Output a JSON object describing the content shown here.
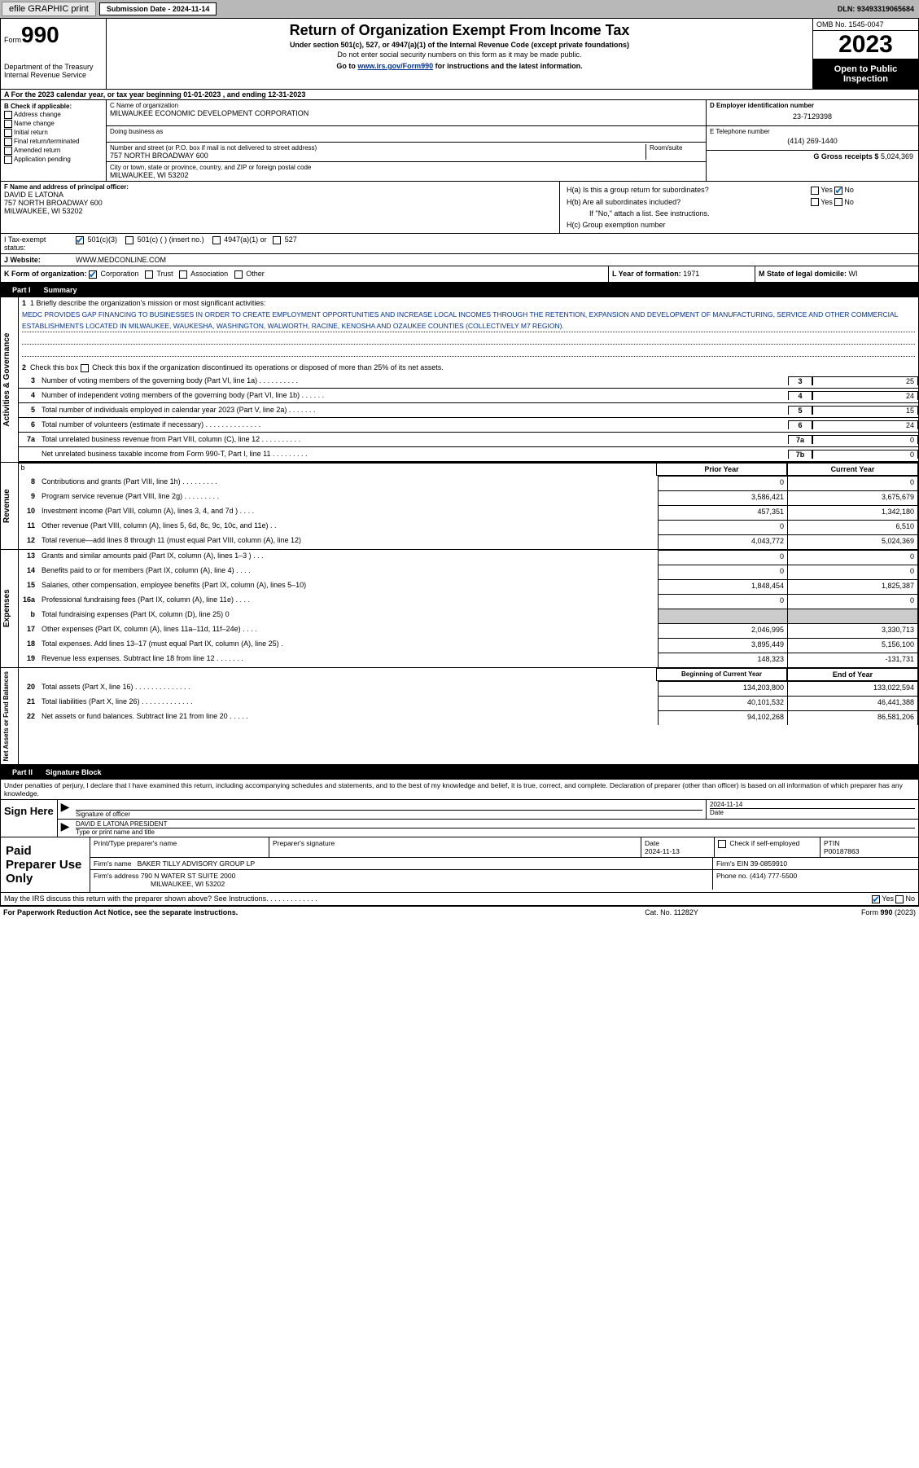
{
  "topbar": {
    "efile": "efile GRAPHIC print",
    "submission_label": "Submission Date - 2024-11-14",
    "dln": "DLN: 93493319065684"
  },
  "header": {
    "form_word": "Form",
    "form_num": "990",
    "dept": "Department of the Treasury",
    "irs": "Internal Revenue Service",
    "title": "Return of Organization Exempt From Income Tax",
    "sub1": "Under section 501(c), 527, or 4947(a)(1) of the Internal Revenue Code (except private foundations)",
    "sub2": "Do not enter social security numbers on this form as it may be made public.",
    "sub3_a": "Go to ",
    "sub3_link": "www.irs.gov/Form990",
    "sub3_b": " for instructions and the latest information.",
    "omb": "OMB No. 1545-0047",
    "year": "2023",
    "open": "Open to Public Inspection"
  },
  "line_a": "A For the 2023 calendar year, or tax year beginning 01-01-2023   , and ending 12-31-2023",
  "box_b": {
    "title": "B Check if applicable:",
    "opts": [
      "Address change",
      "Name change",
      "Initial return",
      "Final return/terminated",
      "Amended return",
      "Application pending"
    ]
  },
  "box_c": {
    "label": "C Name of organization",
    "name": "MILWAUKEE ECONOMIC DEVELOPMENT CORPORATION",
    "dba_label": "Doing business as",
    "street_label": "Number and street (or P.O. box if mail is not delivered to street address)",
    "room_label": "Room/suite",
    "street": "757 NORTH BROADWAY 600",
    "city_label": "City or town, state or province, country, and ZIP or foreign postal code",
    "city": "MILWAUKEE, WI  53202"
  },
  "box_d": {
    "label": "D Employer identification number",
    "val": "23-7129398"
  },
  "box_e": {
    "label": "E Telephone number",
    "val": "(414) 269-1440"
  },
  "box_g": {
    "label": "G Gross receipts $",
    "val": "5,024,369"
  },
  "box_f": {
    "label": "F Name and address of principal officer:",
    "name": "DAVID E LATONA",
    "addr1": "757 NORTH BROADWAY 600",
    "addr2": "MILWAUKEE, WI  53202"
  },
  "box_h": {
    "ha": "H(a)  Is this a group return for subordinates?",
    "hb": "H(b)  Are all subordinates included?",
    "hb_note": "If \"No,\" attach a list. See instructions.",
    "hc": "H(c)  Group exemption number ",
    "yes": "Yes",
    "no": "No"
  },
  "row_i": {
    "label": "I   Tax-exempt status:",
    "o1": "501(c)(3)",
    "o2": "501(c) (  ) (insert no.)",
    "o3": "4947(a)(1) or",
    "o4": "527"
  },
  "row_j": {
    "label": "J   Website:",
    "val": "WWW.MEDCONLINE.COM"
  },
  "row_k": {
    "k1": "K Form of organization:   Corporation    Trust    Association    Other",
    "k1_opts": [
      "Corporation",
      "Trust",
      "Association",
      "Other"
    ],
    "k1_label": "K Form of organization:",
    "k2_label": "L Year of formation:",
    "k2_val": "1971",
    "k3_label": "M State of legal domicile:",
    "k3_val": "WI"
  },
  "part1": {
    "num": "Part I",
    "title": "Summary"
  },
  "s1": {
    "side": "Activities & Governance",
    "l1_label": "1   Briefly describe the organization's mission or most significant activities:",
    "mission": "MEDC PROVIDES GAP FINANCING TO BUSINESSES IN ORDER TO CREATE EMPLOYMENT OPPORTUNITIES AND INCREASE LOCAL INCOMES THROUGH THE RETENTION, EXPANSION AND DEVELOPMENT OF MANUFACTURING, SERVICE AND OTHER COMMERCIAL ESTABLISHMENTS LOCATED IN MILWAUKEE, WAUKESHA, WASHINGTON, WALWORTH, RACINE, KENOSHA AND OZAUKEE COUNTIES (COLLECTIVELY M7 REGION).",
    "l2": "Check this box    if the organization discontinued its operations or disposed of more than 25% of its net assets.",
    "rows": [
      {
        "n": "3",
        "t": "Number of voting members of the governing body (Part VI, line 1a)   .    .    .    .    .    .    .    .    .    .",
        "id": "3",
        "v": "25"
      },
      {
        "n": "4",
        "t": "Number of independent voting members of the governing body (Part VI, line 1b)   .    .    .    .    .    .",
        "id": "4",
        "v": "24"
      },
      {
        "n": "5",
        "t": "Total number of individuals employed in calendar year 2023 (Part V, line 2a)   .    .    .    .    .    .    .",
        "id": "5",
        "v": "15"
      },
      {
        "n": "6",
        "t": "Total number of volunteers (estimate if necessary)   .    .    .    .    .    .    .    .    .    .    .    .    .    .",
        "id": "6",
        "v": "24"
      },
      {
        "n": "7a",
        "t": "Total unrelated business revenue from Part VIII, column (C), line 12   .    .    .    .    .    .    .    .    .    .",
        "id": "7a",
        "v": "0"
      },
      {
        "n": "",
        "t": "Net unrelated business taxable income from Form 990-T, Part I, line 11   .    .    .    .    .    .    .    .    .",
        "id": "7b",
        "v": "0"
      }
    ]
  },
  "s2": {
    "side": "Revenue",
    "h1": "Prior Year",
    "h2": "Current Year",
    "rows": [
      {
        "n": "8",
        "t": "Contributions and grants (Part VIII, line 1h)   .    .    .    .    .    .    .    .    .",
        "v1": "0",
        "v2": "0"
      },
      {
        "n": "9",
        "t": "Program service revenue (Part VIII, line 2g)   .    .    .    .    .    .    .    .    .",
        "v1": "3,586,421",
        "v2": "3,675,679"
      },
      {
        "n": "10",
        "t": "Investment income (Part VIII, column (A), lines 3, 4, and 7d )   .    .    .    .",
        "v1": "457,351",
        "v2": "1,342,180"
      },
      {
        "n": "11",
        "t": "Other revenue (Part VIII, column (A), lines 5, 6d, 8c, 9c, 10c, and 11e)   .    .",
        "v1": "0",
        "v2": "6,510"
      },
      {
        "n": "12",
        "t": "Total revenue—add lines 8 through 11 (must equal Part VIII, column (A), line 12)",
        "v1": "4,043,772",
        "v2": "5,024,369"
      }
    ]
  },
  "s3": {
    "side": "Expenses",
    "rows": [
      {
        "n": "13",
        "t": "Grants and similar amounts paid (Part IX, column (A), lines 1–3 )   .    .    .",
        "v1": "0",
        "v2": "0"
      },
      {
        "n": "14",
        "t": "Benefits paid to or for members (Part IX, column (A), line 4)   .    .    .    .",
        "v1": "0",
        "v2": "0"
      },
      {
        "n": "15",
        "t": "Salaries, other compensation, employee benefits (Part IX, column (A), lines 5–10)",
        "v1": "1,848,454",
        "v2": "1,825,387"
      },
      {
        "n": "16a",
        "t": "Professional fundraising fees (Part IX, column (A), line 11e)   .    .    .    .",
        "v1": "0",
        "v2": "0"
      },
      {
        "n": "b",
        "t": "Total fundraising expenses (Part IX, column (D), line 25) 0",
        "v1": "",
        "v2": "",
        "gray": true
      },
      {
        "n": "17",
        "t": "Other expenses (Part IX, column (A), lines 11a–11d, 11f–24e)   .    .    .    .",
        "v1": "2,046,995",
        "v2": "3,330,713"
      },
      {
        "n": "18",
        "t": "Total expenses. Add lines 13–17 (must equal Part IX, column (A), line 25)   .",
        "v1": "3,895,449",
        "v2": "5,156,100"
      },
      {
        "n": "19",
        "t": "Revenue less expenses. Subtract line 18 from line 12   .    .    .    .    .    .    .",
        "v1": "148,323",
        "v2": "-131,731"
      }
    ]
  },
  "s4": {
    "side": "Net Assets or Fund Balances",
    "h1": "Beginning of Current Year",
    "h2": "End of Year",
    "rows": [
      {
        "n": "20",
        "t": "Total assets (Part X, line 16)   .    .    .    .    .    .    .    .    .    .    .    .    .    .",
        "v1": "134,203,800",
        "v2": "133,022,594"
      },
      {
        "n": "21",
        "t": "Total liabilities (Part X, line 26)   .    .    .    .    .    .    .    .    .    .    .    .    .",
        "v1": "40,101,532",
        "v2": "46,441,388"
      },
      {
        "n": "22",
        "t": "Net assets or fund balances. Subtract line 21 from line 20   .    .    .    .    .",
        "v1": "94,102,268",
        "v2": "86,581,206"
      }
    ]
  },
  "part2": {
    "num": "Part II",
    "title": "Signature Block"
  },
  "penalties": "Under penalties of perjury, I declare that I have examined this return, including accompanying schedules and statements, and to the best of my knowledge and belief, it is true, correct, and complete. Declaration of preparer (other than officer) is based on all information of which preparer has any knowledge.",
  "sign": {
    "left": "Sign Here",
    "sig_label": "Signature of officer",
    "date_label": "Date",
    "date": "2024-11-14",
    "name": "DAVID E LATONA PRESIDENT",
    "name_label": "Type or print name and title"
  },
  "prep": {
    "left": "Paid Preparer Use Only",
    "h1": "Print/Type preparer's name",
    "h2": "Preparer's signature",
    "h3": "Date",
    "h4": "PTIN",
    "date": "2024-11-13",
    "check_label": "Check         if self-employed",
    "ptin": "P00187863",
    "firm_name_label": "Firm's name      ",
    "firm_name": "BAKER TILLY ADVISORY GROUP LP",
    "firm_ein_label": "Firm's EIN  ",
    "firm_ein": "39-0859910",
    "firm_addr_label": "Firm's address ",
    "firm_addr": "790 N WATER ST SUITE 2000",
    "firm_city": "MILWAUKEE, WI  53202",
    "phone_label": "Phone no.",
    "phone": "(414) 777-5500"
  },
  "discuss": "May the IRS discuss this return with the preparer shown above? See Instructions.   .    .    .    .    .    .    .    .    .    .    .    .",
  "footer": {
    "f1": "For Paperwork Reduction Act Notice, see the separate instructions.",
    "f2": "Cat. No. 11282Y",
    "f3": "Form 990 (2023)"
  }
}
